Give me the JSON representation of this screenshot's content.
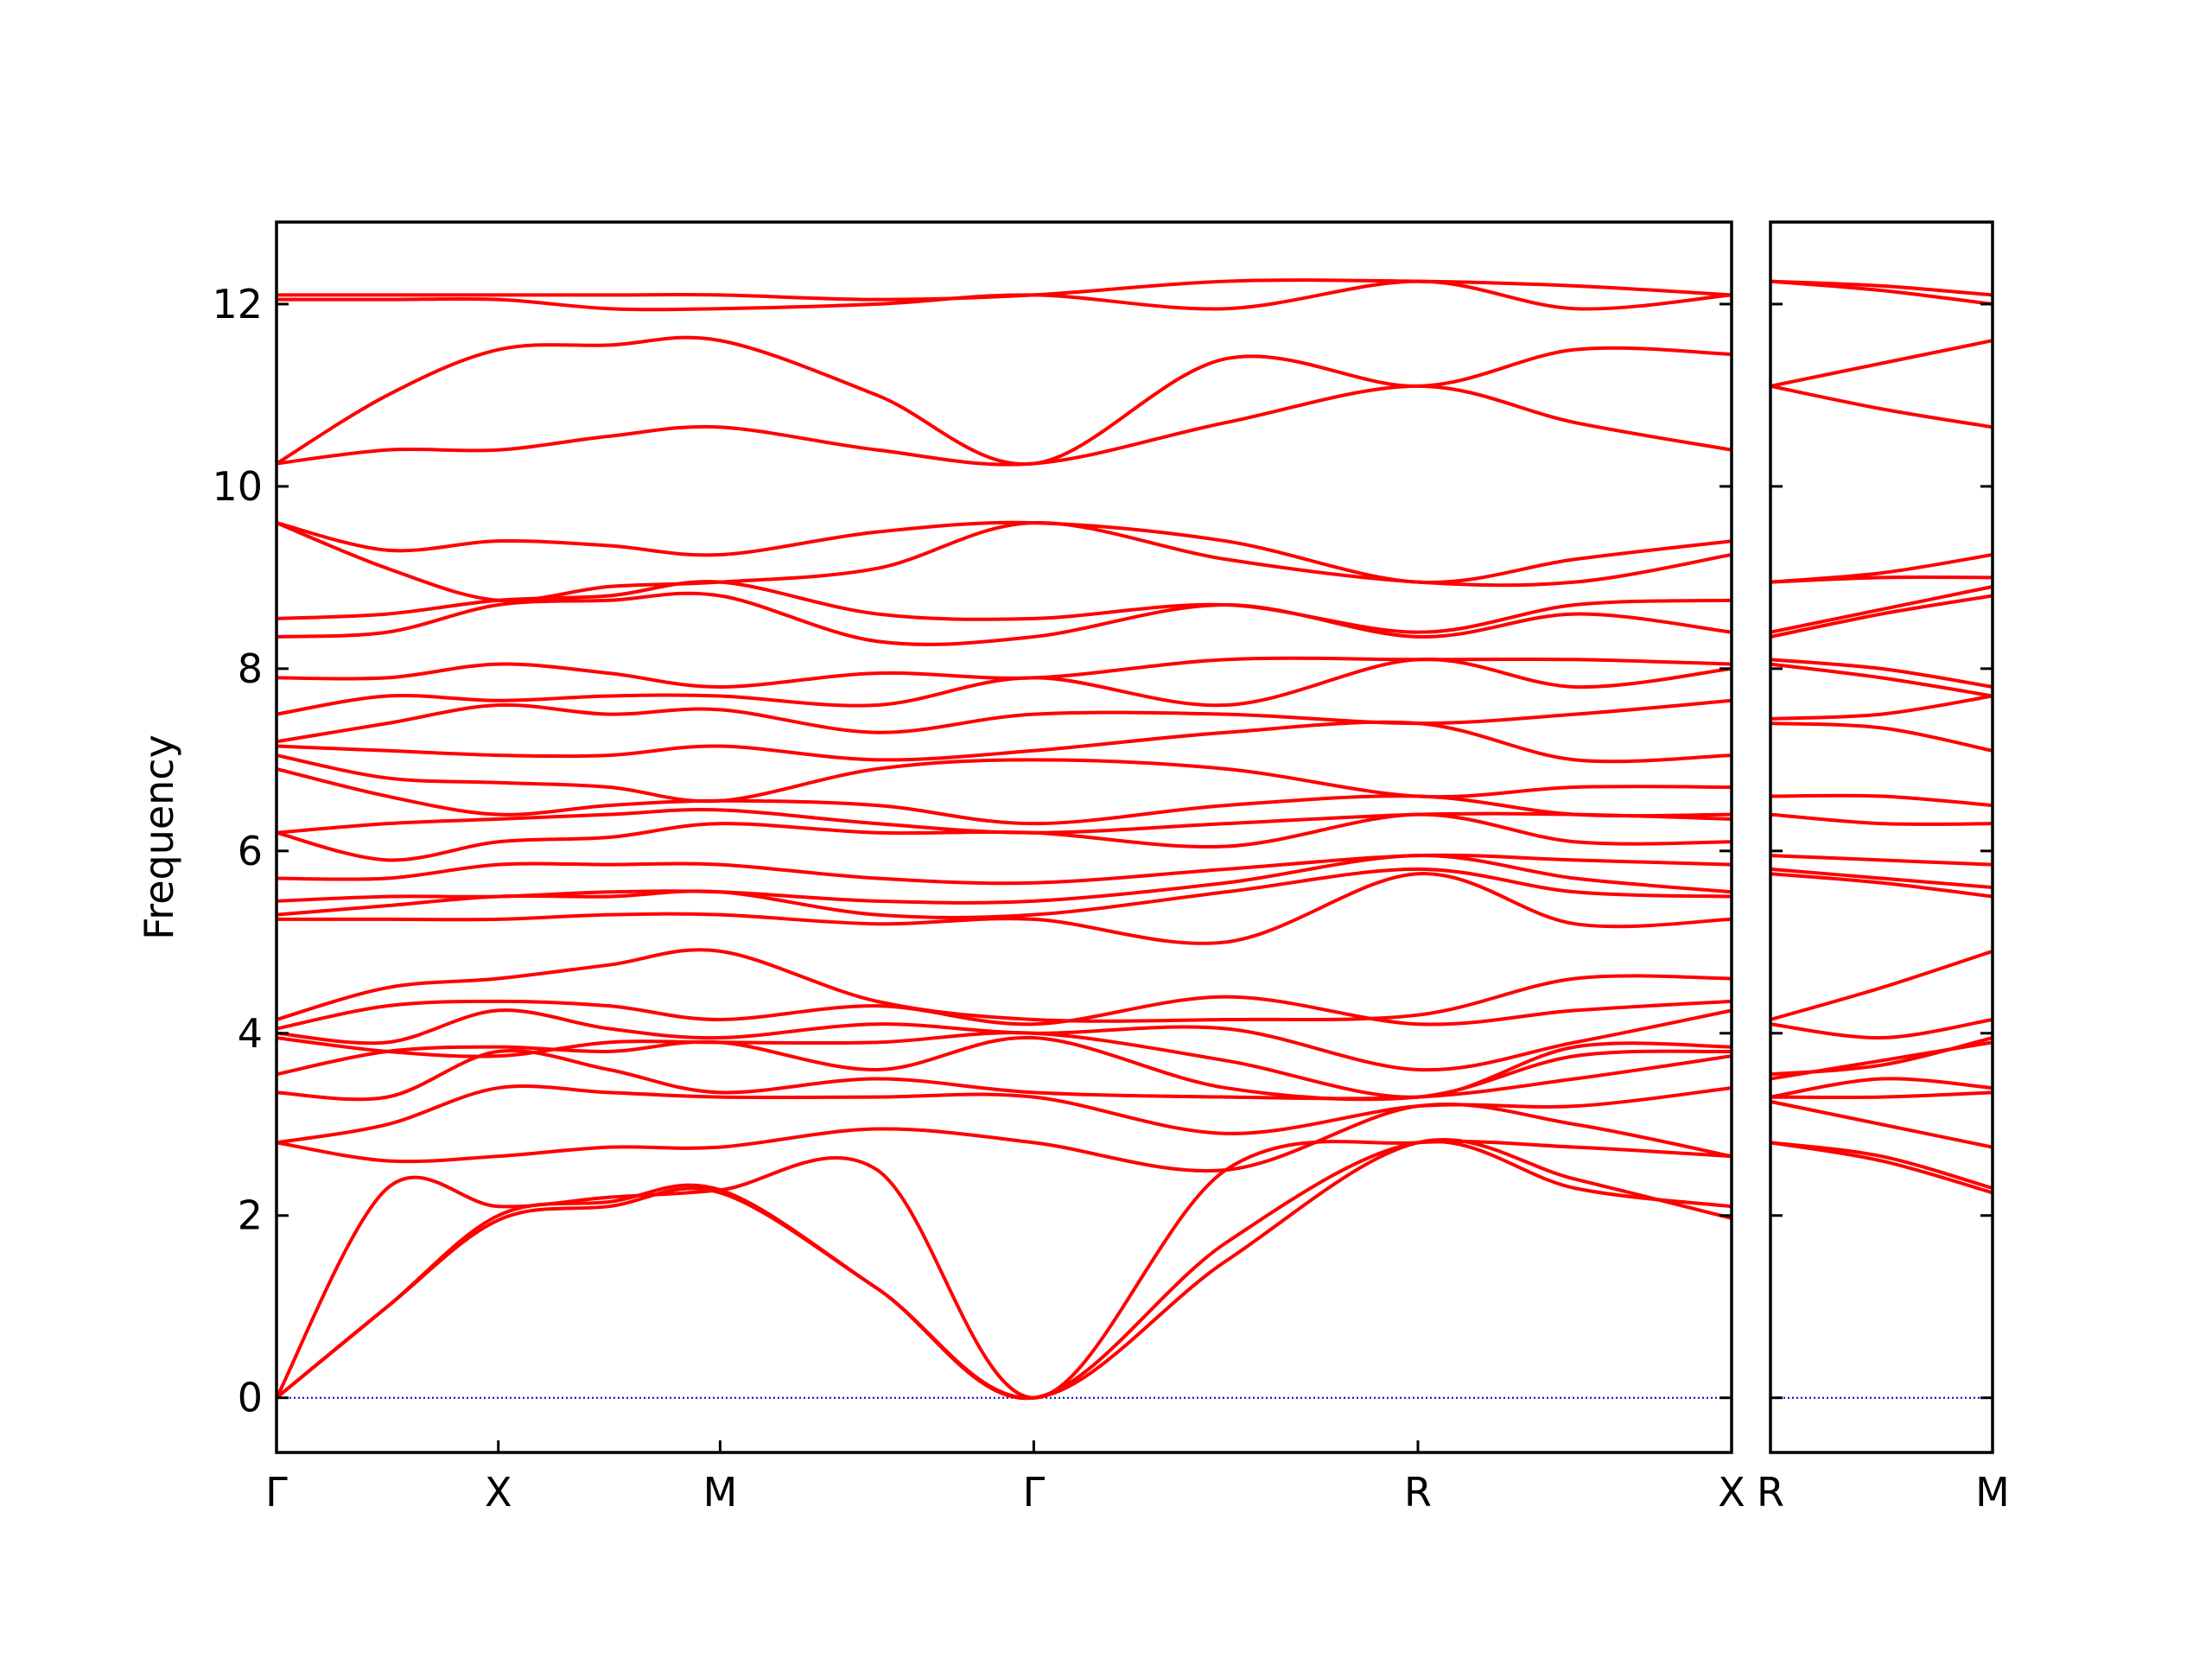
{
  "chart_data": [
    {
      "type": "line",
      "y_label": "Frequency",
      "color": "#ff0000",
      "yticklabels": true,
      "hline": {
        "value": 0,
        "color": "#0000cc"
      },
      "xlim": [
        0,
        3.28
      ],
      "ylim": [
        -0.6,
        12.9
      ],
      "xticks": [
        {
          "value": 0,
          "label": "Γ"
        },
        {
          "value": 0.5,
          "label": "X"
        },
        {
          "value": 1.0,
          "label": "M"
        },
        {
          "value": 1.707,
          "label": "Γ"
        },
        {
          "value": 2.573,
          "label": "R"
        },
        {
          "value": 3.28,
          "label": "X"
        }
      ],
      "yticks": [
        0,
        2,
        4,
        6,
        8,
        10,
        12
      ],
      "x": [
        0,
        0.25,
        0.5,
        0.75,
        1.0,
        1.354,
        1.707,
        2.14,
        2.573,
        2.927,
        3.28
      ],
      "series": [
        {
          "values": [
            0,
            1.0,
            1.95,
            2.1,
            2.25,
            1.2,
            0,
            1.5,
            2.8,
            2.4,
            1.97
          ]
        },
        {
          "values": [
            0,
            1.0,
            2.0,
            2.15,
            2.28,
            1.2,
            0,
            1.7,
            2.8,
            2.3,
            2.1
          ]
        },
        {
          "values": [
            0,
            2.3,
            2.1,
            2.2,
            2.28,
            2.5,
            0,
            2.5,
            2.8,
            2.75,
            2.65
          ]
        },
        {
          "values": [
            2.8,
            2.6,
            2.65,
            2.75,
            2.75,
            2.95,
            2.8,
            2.5,
            3.2,
            3.0,
            2.65
          ]
        },
        {
          "values": [
            2.8,
            3.0,
            3.4,
            3.35,
            3.3,
            3.3,
            3.3,
            2.9,
            3.2,
            3.2,
            3.4
          ]
        },
        {
          "values": [
            3.35,
            3.3,
            3.8,
            3.6,
            3.35,
            3.5,
            3.35,
            3.3,
            3.3,
            3.5,
            3.75
          ]
        },
        {
          "values": [
            3.55,
            3.8,
            3.85,
            3.8,
            3.9,
            3.6,
            3.95,
            3.4,
            3.3,
            3.75,
            3.8
          ]
        },
        {
          "values": [
            3.95,
            3.8,
            3.75,
            3.9,
            3.9,
            3.9,
            4.0,
            3.7,
            3.3,
            3.85,
            3.85
          ]
        },
        {
          "values": [
            4.0,
            3.9,
            4.25,
            4.05,
            3.95,
            4.1,
            4.0,
            4.05,
            3.6,
            3.9,
            4.25
          ]
        },
        {
          "values": [
            4.05,
            4.3,
            4.35,
            4.3,
            4.15,
            4.3,
            4.1,
            4.4,
            4.1,
            4.25,
            4.35
          ]
        },
        {
          "values": [
            4.15,
            4.5,
            4.6,
            4.75,
            4.9,
            4.35,
            4.15,
            4.15,
            4.2,
            4.6,
            4.6
          ]
        },
        {
          "values": [
            5.25,
            5.25,
            5.25,
            5.3,
            5.3,
            5.2,
            5.25,
            5.0,
            5.75,
            5.2,
            5.25
          ]
        },
        {
          "values": [
            5.3,
            5.4,
            5.5,
            5.5,
            5.55,
            5.3,
            5.3,
            5.55,
            5.8,
            5.55,
            5.5
          ]
        },
        {
          "values": [
            5.45,
            5.5,
            5.5,
            5.55,
            5.55,
            5.45,
            5.45,
            5.65,
            5.95,
            5.7,
            5.55
          ]
        },
        {
          "values": [
            5.7,
            5.7,
            5.85,
            5.85,
            5.85,
            5.7,
            5.65,
            5.8,
            5.95,
            5.9,
            5.85
          ]
        },
        {
          "values": [
            6.2,
            5.9,
            6.1,
            6.15,
            6.3,
            6.2,
            6.2,
            6.05,
            6.4,
            6.1,
            6.1
          ]
        },
        {
          "values": [
            6.2,
            6.3,
            6.35,
            6.4,
            6.45,
            6.3,
            6.2,
            6.3,
            6.4,
            6.4,
            6.35
          ]
        },
        {
          "values": [
            6.9,
            6.6,
            6.4,
            6.5,
            6.55,
            6.5,
            6.3,
            6.5,
            6.6,
            6.4,
            6.4
          ]
        },
        {
          "values": [
            7.05,
            6.8,
            6.75,
            6.7,
            6.55,
            6.9,
            7.0,
            6.9,
            6.6,
            6.7,
            6.7
          ]
        },
        {
          "values": [
            7.15,
            7.1,
            7.05,
            7.05,
            7.15,
            7.0,
            7.1,
            7.3,
            7.4,
            7.0,
            7.05
          ]
        },
        {
          "values": [
            7.2,
            7.4,
            7.6,
            7.5,
            7.55,
            7.3,
            7.5,
            7.5,
            7.4,
            7.5,
            7.65
          ]
        },
        {
          "values": [
            7.5,
            7.7,
            7.65,
            7.7,
            7.7,
            7.6,
            7.9,
            7.6,
            8.1,
            7.8,
            8.0
          ]
        },
        {
          "values": [
            7.9,
            7.9,
            8.05,
            7.95,
            7.8,
            7.95,
            7.9,
            8.1,
            8.1,
            8.1,
            8.05
          ]
        },
        {
          "values": [
            8.35,
            8.4,
            8.7,
            8.75,
            8.8,
            8.3,
            8.35,
            8.7,
            8.35,
            8.6,
            8.4
          ]
        },
        {
          "values": [
            8.55,
            8.6,
            8.75,
            8.8,
            8.95,
            8.6,
            8.55,
            8.7,
            8.4,
            8.7,
            8.75
          ]
        },
        {
          "values": [
            9.6,
            9.1,
            8.75,
            8.9,
            8.95,
            9.1,
            9.6,
            9.2,
            8.95,
            8.95,
            9.25
          ]
        },
        {
          "values": [
            9.6,
            9.3,
            9.4,
            9.35,
            9.25,
            9.5,
            9.6,
            9.4,
            8.95,
            9.2,
            9.4
          ]
        },
        {
          "values": [
            10.25,
            10.4,
            10.4,
            10.55,
            10.65,
            10.4,
            10.25,
            10.7,
            11.1,
            10.7,
            10.4
          ]
        },
        {
          "values": [
            10.25,
            11.0,
            11.5,
            11.55,
            11.6,
            11.0,
            10.25,
            11.4,
            11.1,
            11.5,
            11.45
          ]
        },
        {
          "values": [
            12.05,
            12.05,
            12.05,
            11.95,
            11.95,
            12.0,
            12.1,
            11.95,
            12.25,
            11.95,
            12.1
          ]
        },
        {
          "values": [
            12.1,
            12.1,
            12.1,
            12.1,
            12.1,
            12.05,
            12.1,
            12.25,
            12.25,
            12.2,
            12.1
          ]
        }
      ]
    },
    {
      "type": "line",
      "color": "#ff0000",
      "yticklabels": false,
      "hline": {
        "value": 0,
        "color": "#0000cc"
      },
      "xlim": [
        3.28,
        3.78
      ],
      "ylim": [
        -0.6,
        12.9
      ],
      "xticks": [
        {
          "value": 3.28,
          "label": "R"
        },
        {
          "value": 3.78,
          "label": "M"
        }
      ],
      "yticks": [
        0,
        2,
        4,
        6,
        8,
        10,
        12
      ],
      "x": [
        3.28,
        3.53,
        3.78
      ],
      "series": [
        {
          "values": [
            2.8,
            2.6,
            2.25
          ]
        },
        {
          "values": [
            2.8,
            2.65,
            2.3
          ]
        },
        {
          "values": [
            3.25,
            3.0,
            2.75
          ]
        },
        {
          "values": [
            3.3,
            3.3,
            3.35
          ]
        },
        {
          "values": [
            3.3,
            3.5,
            3.4
          ]
        },
        {
          "values": [
            3.5,
            3.7,
            3.9
          ]
        },
        {
          "values": [
            3.55,
            3.65,
            3.95
          ]
        },
        {
          "values": [
            4.1,
            3.95,
            4.15
          ]
        },
        {
          "values": [
            4.15,
            4.5,
            4.9
          ]
        },
        {
          "values": [
            5.75,
            5.65,
            5.5
          ]
        },
        {
          "values": [
            5.8,
            5.7,
            5.6
          ]
        },
        {
          "values": [
            5.95,
            5.9,
            5.85
          ]
        },
        {
          "values": [
            6.4,
            6.3,
            6.3
          ]
        },
        {
          "values": [
            6.6,
            6.6,
            6.5
          ]
        },
        {
          "values": [
            7.4,
            7.35,
            7.1
          ]
        },
        {
          "values": [
            7.45,
            7.5,
            7.7
          ]
        },
        {
          "values": [
            8.05,
            7.9,
            7.7
          ]
        },
        {
          "values": [
            8.1,
            8.0,
            7.8
          ]
        },
        {
          "values": [
            8.35,
            8.6,
            8.8
          ]
        },
        {
          "values": [
            8.4,
            8.65,
            8.9
          ]
        },
        {
          "values": [
            8.95,
            9.0,
            9.0
          ]
        },
        {
          "values": [
            8.95,
            9.05,
            9.25
          ]
        },
        {
          "values": [
            11.1,
            10.85,
            10.65
          ]
        },
        {
          "values": [
            11.1,
            11.35,
            11.6
          ]
        },
        {
          "values": [
            12.25,
            12.15,
            12.0
          ]
        },
        {
          "values": [
            12.25,
            12.2,
            12.1
          ]
        }
      ]
    }
  ]
}
